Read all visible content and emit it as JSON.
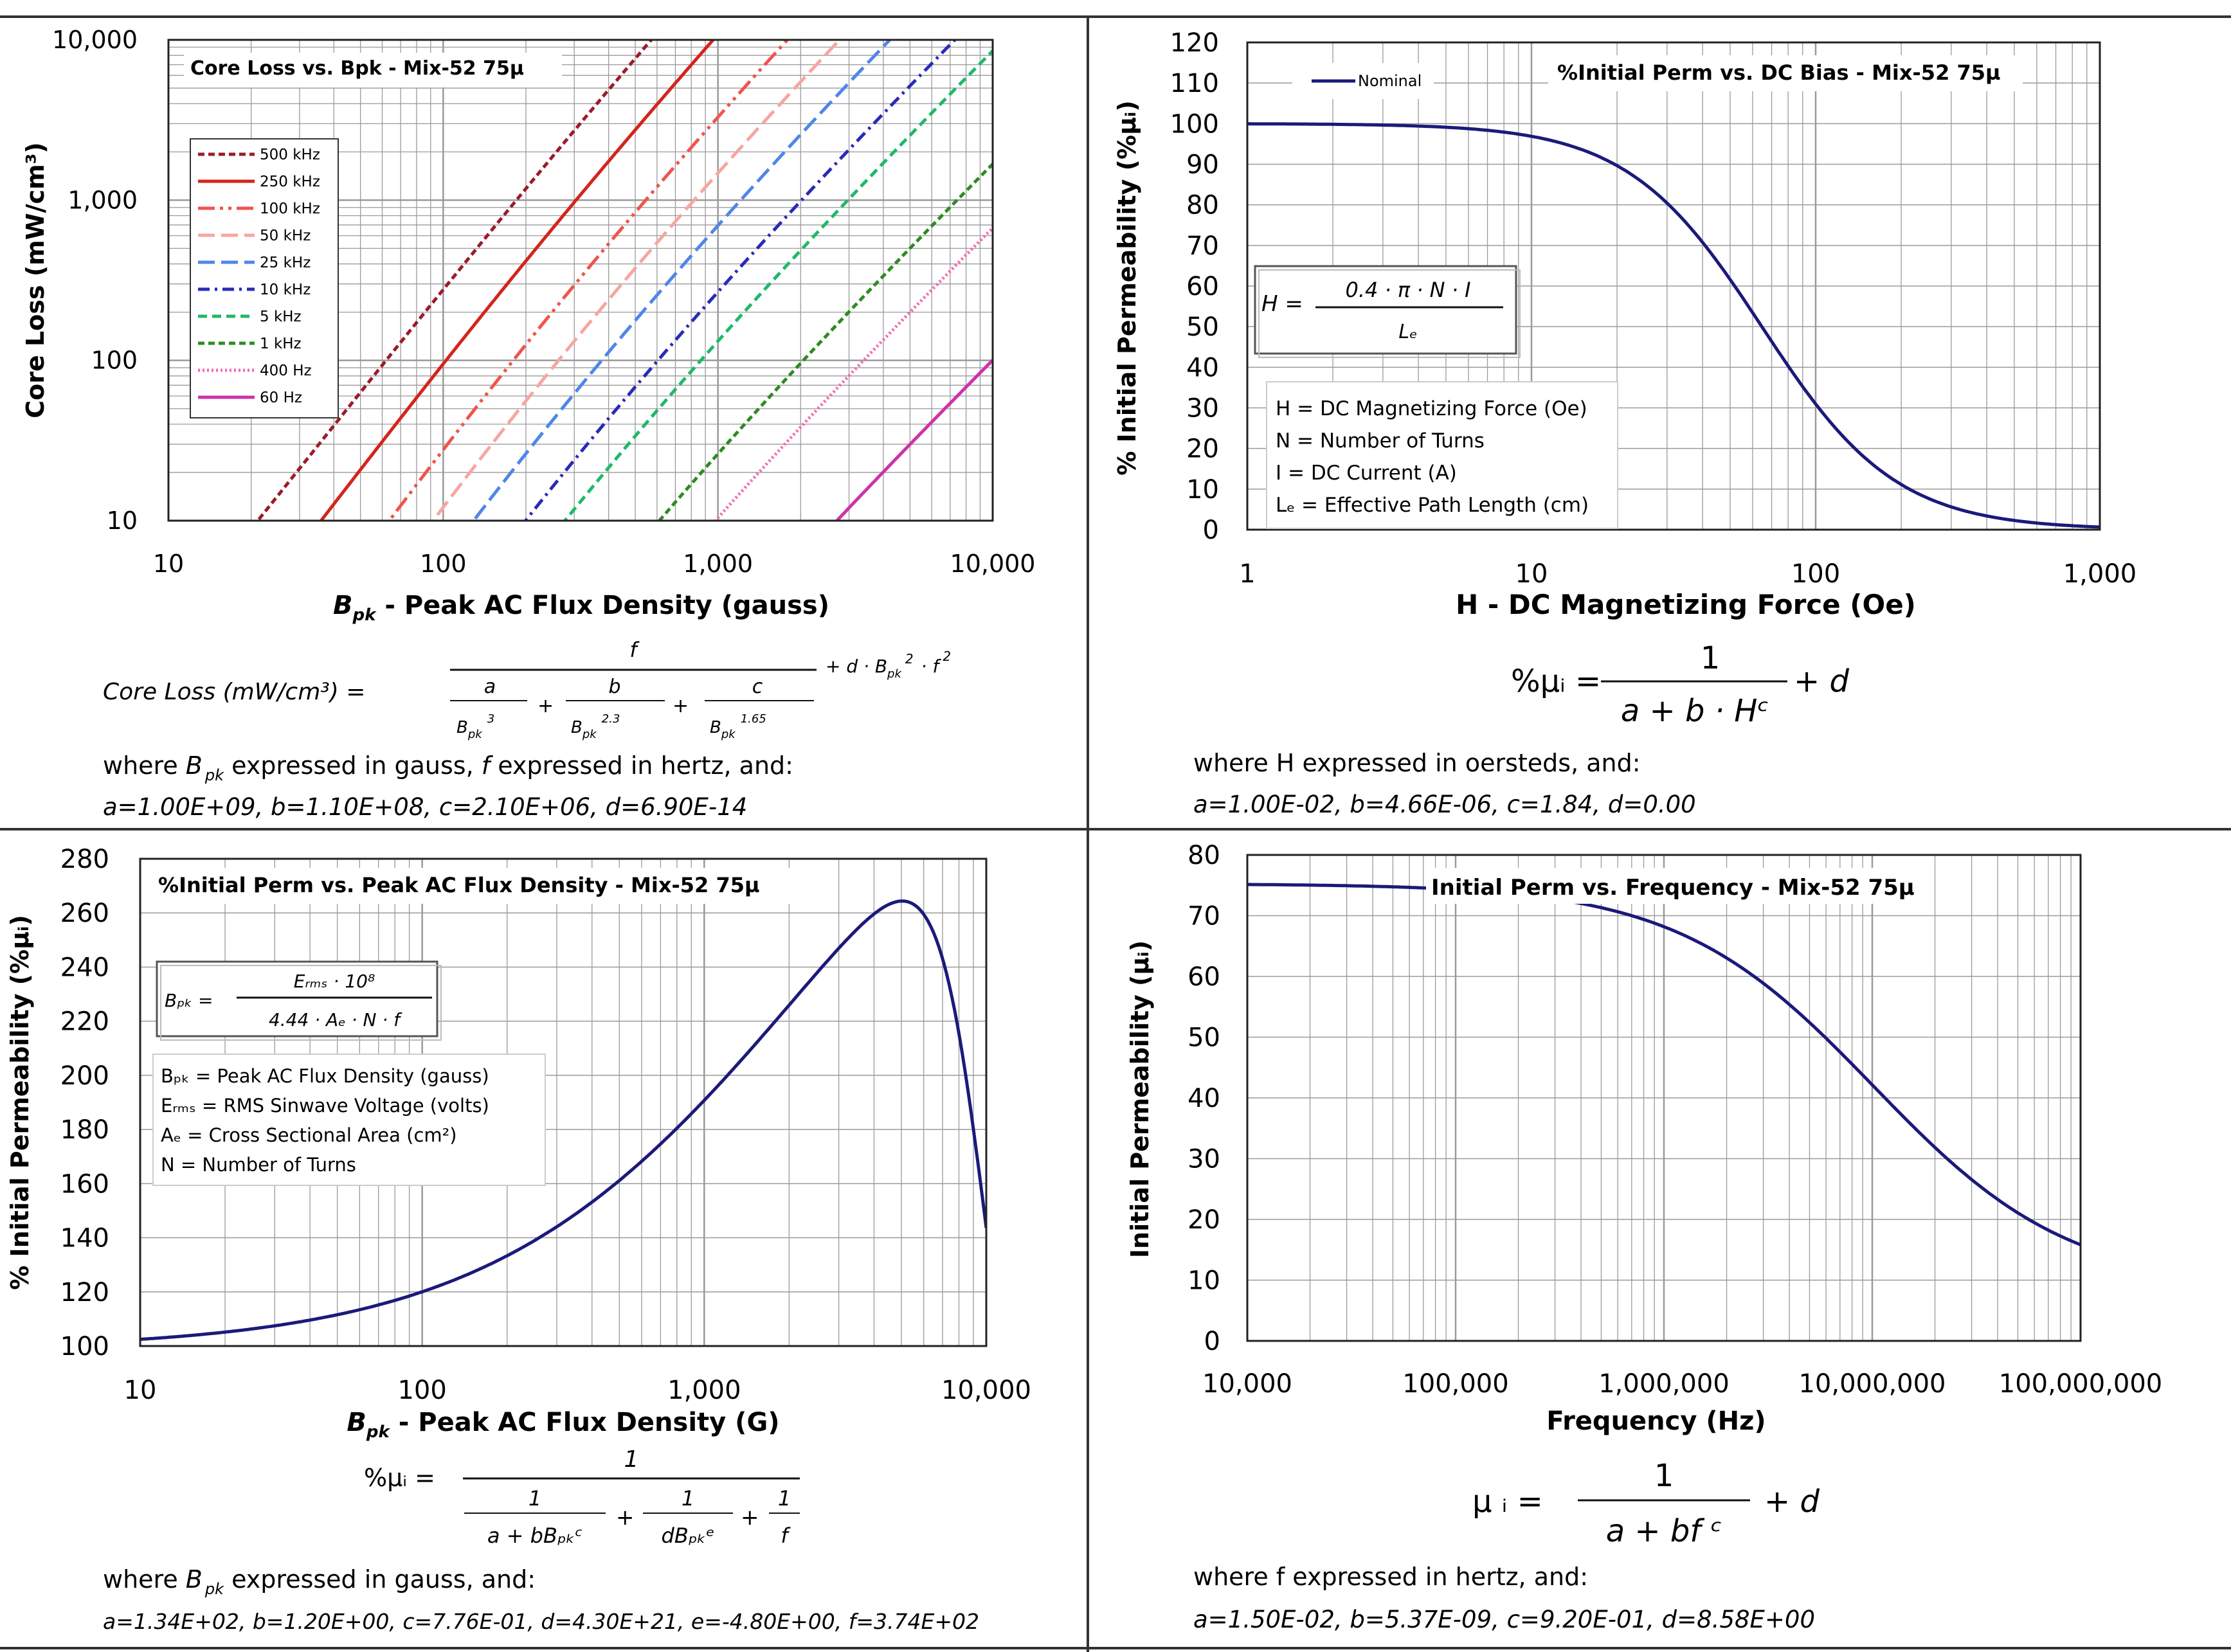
{
  "colors": {
    "navy": "#1b1a7a",
    "grid": "#9a9a9a",
    "axis": "#222222"
  },
  "panels": {
    "core_loss": {
      "title": "Core Loss vs. Bpk - Mix-52  75µ",
      "ylabel": "Core Loss (mW/cm³)",
      "xlabel_sym": "B",
      "xlabel_sub": "pk",
      "xlabel_rest": " - Peak AC Flux Density (gauss)",
      "eq_lhs": "Core Loss (mW/cm³)  =",
      "eq_num": "f",
      "eq_a": "a",
      "eq_b": "b",
      "eq_c": "c",
      "eq_den_base": "B",
      "eq_den_sub": "pk",
      "eq_exp_a": "3",
      "eq_exp_b": "2.3",
      "eq_exp_c": "1.65",
      "eq_tail": "+  d  ·  B",
      "eq_tail_exp": "2",
      "eq_tail_f": "·  f",
      "eq_tail_fexp": "2",
      "where_pre": "where ",
      "where_mid": " expressed in gauss, ",
      "where_f": "f",
      "where_post": " expressed in hertz, and:",
      "coeffs": "a=1.00E+09,   b=1.10E+08,  c=2.10E+06,   d=6.90E-14"
    },
    "perm_dc": {
      "title": "%Initial Perm vs. DC Bias - Mix-52  75µ",
      "ylabel": "% Initial Permeability (%µᵢ)",
      "xlabel": "H - DC Magnetizing Force (Oe)",
      "legend": "Nominal",
      "formula_lhs": "H  =",
      "formula_num": "0.4 · π  · N · I",
      "formula_den": "Lₑ",
      "defs": [
        "H = DC Magnetizing Force (Oe)",
        "N = Number of Turns",
        "I = DC Current (A)",
        "Lₑ = Effective Path Length (cm)"
      ],
      "eq_lhs": "%µᵢ =",
      "eq_num": "1",
      "eq_den": "a + b · Hᶜ",
      "eq_tail": "+ d",
      "where": "where H  expressed in oersteds, and:",
      "coeffs": "a=1.00E-02,  b=4.66E-06,  c=1.84,  d=0.00"
    },
    "perm_ac": {
      "title": "%Initial Perm vs. Peak AC Flux Density - Mix-52  75µ",
      "ylabel": "% Initial Permeability (%µᵢ)",
      "xlabel_sym": "B",
      "xlabel_sub": "pk",
      "xlabel_rest": " - Peak AC Flux Density (G)",
      "formula_lhs": "Bₚₖ  =",
      "formula_num": "Eᵣₘₛ · 10⁸",
      "formula_den": "4.44 · Aₑ · N · f",
      "defs": [
        "Bₚₖ = Peak AC Flux Density (gauss)",
        "Eᵣₘₛ = RMS Sinwave Voltage (volts)",
        "Aₑ = Cross Sectional Area (cm²)",
        "N = Number of Turns"
      ],
      "eq_lhs": "%µᵢ =",
      "eq_num": "1",
      "eq_t1": "1",
      "eq_t1_den": "a + bBₚₖᶜ",
      "eq_t2": "1",
      "eq_t2_den": "dBₚₖᵉ",
      "eq_t3": "1",
      "eq_t3_den": "f",
      "where_pre": "where ",
      "where_post": " expressed in gauss, and:",
      "coeffs": "a=1.34E+02, b=1.20E+00, c=7.76E-01, d=4.30E+21, e=-4.80E+00, f=3.74E+02"
    },
    "perm_freq": {
      "title": "Initial Perm vs. Frequency - Mix-52  75µ",
      "ylabel": "Initial Permeability (µᵢ)",
      "xlabel": "Frequency (Hz)",
      "eq_lhs": "µ ᵢ  =",
      "eq_num": "1",
      "eq_den": "a  +  bf ᶜ",
      "eq_tail": "+  d",
      "where": "where f  expressed in hertz, and:",
      "coeffs": "a=1.50E-02,   b=5.37E-09,  c=9.20E-01,   d=8.58E+00"
    }
  },
  "chart_data": [
    {
      "type": "line",
      "title": "Core Loss vs. Bpk - Mix-52  75µ",
      "xlabel": "Bpk - Peak AC Flux Density (gauss)",
      "ylabel": "Core Loss (mW/cm³)",
      "xscale": "log",
      "yscale": "log",
      "xlim": [
        10,
        10000
      ],
      "ylim": [
        10,
        10000
      ],
      "xticks": [
        "10",
        "100",
        "1,000",
        "10,000"
      ],
      "yticks": [
        "10",
        "100",
        "1,000",
        "10,000"
      ],
      "legend_position": "upper-left",
      "grid": true,
      "model": {
        "a": 1000000000.0,
        "b": 110000000.0,
        "c": 2100000.0,
        "d": 6.9e-14
      },
      "series": [
        {
          "name": "500 kHz",
          "f": 500000,
          "color": "#9b1b2b",
          "dash": "10,6"
        },
        {
          "name": "250 kHz",
          "f": 250000,
          "color": "#d4241c",
          "dash": ""
        },
        {
          "name": "100 kHz",
          "f": 100000,
          "color": "#f0544d",
          "dash": "26,8,5,8,5,8"
        },
        {
          "name": "50 kHz",
          "f": 50000,
          "color": "#f6a7a0",
          "dash": "26,10"
        },
        {
          "name": "25 kHz",
          "f": 25000,
          "color": "#4f86e8",
          "dash": "26,10"
        },
        {
          "name": "10 kHz",
          "f": 10000,
          "color": "#2a2ab8",
          "dash": "18,8,4,8"
        },
        {
          "name": "5 kHz",
          "f": 5000,
          "color": "#20b86a",
          "dash": "14,8"
        },
        {
          "name": "1 kHz",
          "f": 1000,
          "color": "#2e8b22",
          "dash": "10,6"
        },
        {
          "name": "400 Hz",
          "f": 400,
          "color": "#f06cb4",
          "dash": "3,4"
        },
        {
          "name": "60 Hz",
          "f": 60,
          "color": "#cc33aa",
          "dash": ""
        }
      ]
    },
    {
      "type": "line",
      "title": "%Initial Perm vs. DC Bias - Mix-52  75µ",
      "xlabel": "H - DC Magnetizing Force (Oe)",
      "ylabel": "% Initial Permeability (%µᵢ)",
      "xscale": "log",
      "xlim": [
        1,
        1000
      ],
      "ylim": [
        0,
        120
      ],
      "xticks": [
        "1",
        "10",
        "100",
        "1,000"
      ],
      "yticks": [
        0,
        10,
        20,
        30,
        40,
        50,
        60,
        70,
        80,
        90,
        100,
        110,
        120
      ],
      "grid": true,
      "model": {
        "a": 0.01,
        "b": 4.66e-06,
        "c": 1.84,
        "d": 0.0
      },
      "series": [
        {
          "name": "Nominal"
        }
      ],
      "points": [
        [
          1,
          99.95
        ],
        [
          10,
          98.1
        ],
        [
          20,
          93.8
        ],
        [
          40,
          78.9
        ],
        [
          70,
          51.8
        ],
        [
          100,
          33.5
        ],
        [
          200,
          10.1
        ],
        [
          400,
          2.8
        ],
        [
          1000,
          0.5
        ]
      ]
    },
    {
      "type": "line",
      "title": "%Initial Perm vs. Peak AC Flux Density - Mix-52  75µ",
      "xlabel": "Bpk - Peak AC Flux Density (G)",
      "ylabel": "% Initial Permeability (%µᵢ)",
      "xscale": "log",
      "xlim": [
        10,
        10000
      ],
      "ylim": [
        100,
        280
      ],
      "xticks": [
        "10",
        "100",
        "1,000",
        "10,000"
      ],
      "yticks": [
        100,
        120,
        140,
        160,
        180,
        200,
        220,
        240,
        260,
        280
      ],
      "grid": true,
      "model": {
        "a": 134.0,
        "b": 1.2,
        "c": 0.776,
        "d": 4.3e+21,
        "e": -4.8,
        "f": 374.0
      },
      "points": [
        [
          10,
          102
        ],
        [
          50,
          111
        ],
        [
          100,
          120
        ],
        [
          300,
          143
        ],
        [
          1000,
          187
        ],
        [
          3000,
          250
        ],
        [
          5000,
          264
        ],
        [
          7000,
          245
        ],
        [
          10000,
          141
        ]
      ]
    },
    {
      "type": "line",
      "title": "Initial Perm vs. Frequency - Mix-52  75µ",
      "xlabel": "Frequency (Hz)",
      "ylabel": "Initial Permeability (µᵢ)",
      "xscale": "log",
      "xlim": [
        10000,
        100000000
      ],
      "ylim": [
        0,
        80
      ],
      "xticks": [
        "10,000",
        "100,000",
        "1,000,000",
        "10,000,000",
        "100,000,000"
      ],
      "yticks": [
        0,
        10,
        20,
        30,
        40,
        50,
        60,
        70,
        80
      ],
      "grid": true,
      "model": {
        "a": 0.015,
        "b": 5.37e-09,
        "c": 0.92,
        "d": 8.58
      },
      "points": [
        [
          10000,
          75
        ],
        [
          100000,
          74
        ],
        [
          1000000,
          67.5
        ],
        [
          3000000,
          61
        ],
        [
          10000000,
          44
        ],
        [
          30000000,
          27
        ],
        [
          100000000,
          15.5
        ]
      ]
    }
  ]
}
